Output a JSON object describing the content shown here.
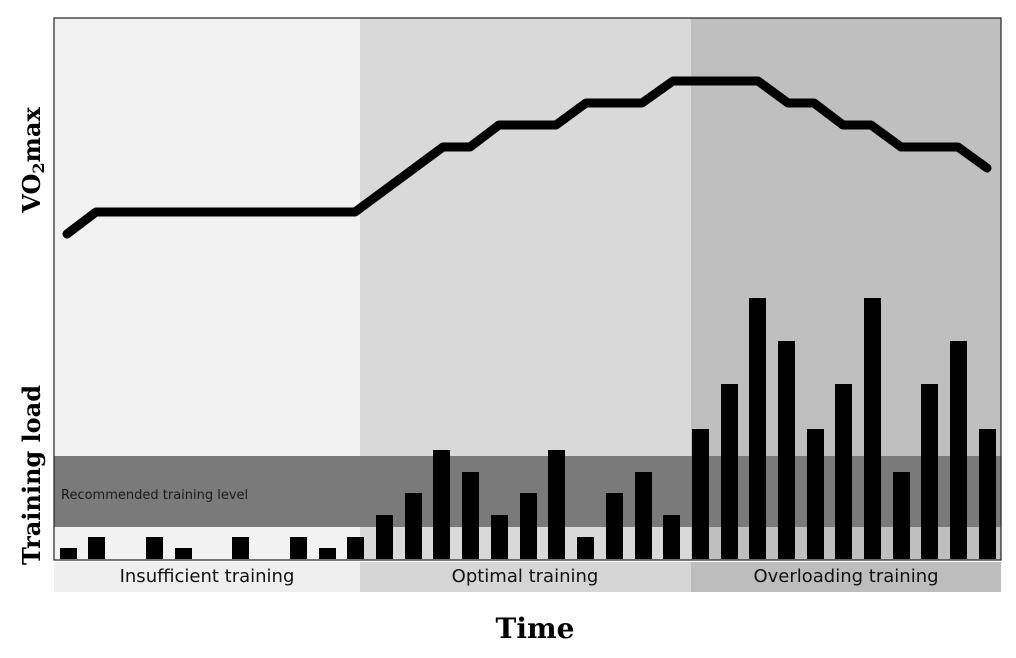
{
  "axes": {
    "x_title": "Time",
    "y_upper_title_main": "VO",
    "y_upper_title_sub": "2",
    "y_upper_title_tail": "max",
    "y_lower_title": "Training load"
  },
  "band": {
    "label": "Recommended training level",
    "color": "#7a7a7a"
  },
  "zones": [
    {
      "label": "Insufficient training",
      "color": "#f2f2f2",
      "label_bg": "#efefef"
    },
    {
      "label": "Optimal training",
      "color": "#d9d9d9",
      "label_bg": "#d6d6d6"
    },
    {
      "label": "Overloading training",
      "color": "#bfbfbf",
      "label_bg": "#bdbdbd"
    }
  ],
  "colors": {
    "line": "#000000",
    "bars": "#000000",
    "frame": "#222222"
  }
}
